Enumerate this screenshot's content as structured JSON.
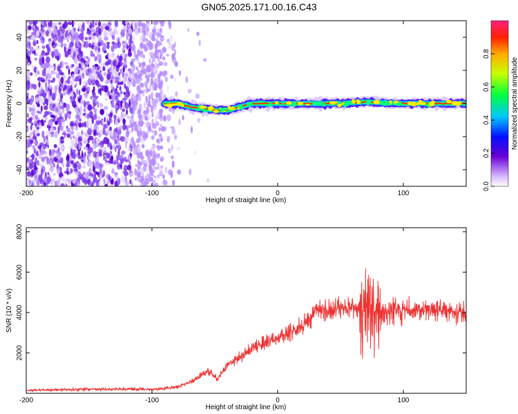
{
  "title": "GN05.2025.171.00.16.C43",
  "chart_data": [
    {
      "type": "heatmap",
      "xlabel": "Height of straight line (km)",
      "ylabel": "Frequency (Hz)",
      "xlim": [
        -200,
        150
      ],
      "ylim": [
        -50,
        50
      ],
      "xticks": [
        -200,
        -100,
        0,
        100
      ],
      "yticks": [
        -40,
        -20,
        0,
        20,
        40
      ],
      "colorbar": {
        "label": "Normalized spectral amplitude",
        "range": [
          0,
          1
        ],
        "ticks": [
          "0.0",
          "0.2",
          "0.4",
          "0.6",
          "0.8"
        ]
      },
      "ridge": [
        {
          "x": -90,
          "y": 0
        },
        {
          "x": -80,
          "y": 0
        },
        {
          "x": -70,
          "y": -2
        },
        {
          "x": -60,
          "y": -3
        },
        {
          "x": -50,
          "y": -4
        },
        {
          "x": -40,
          "y": -4
        },
        {
          "x": -30,
          "y": -2
        },
        {
          "x": -20,
          "y": 0
        },
        {
          "x": 0,
          "y": 0
        },
        {
          "x": 50,
          "y": 0
        },
        {
          "x": 70,
          "y": 1
        },
        {
          "x": 100,
          "y": 0
        },
        {
          "x": 150,
          "y": 0
        }
      ],
      "noise_region": [
        -200,
        -80
      ]
    },
    {
      "type": "line",
      "xlabel": "Height of straight line (km)",
      "ylabel": "SNR (10 * v/v)",
      "xlim": [
        -200,
        150
      ],
      "ylim": [
        0,
        8200
      ],
      "xticks": [
        -200,
        -100,
        0,
        100
      ],
      "yticks": [
        2000,
        4000,
        6000,
        8000
      ],
      "color": "#ee3333",
      "trend": [
        {
          "x": -200,
          "y": 150
        },
        {
          "x": -150,
          "y": 200
        },
        {
          "x": -100,
          "y": 200
        },
        {
          "x": -80,
          "y": 300
        },
        {
          "x": -65,
          "y": 700
        },
        {
          "x": -55,
          "y": 1100
        },
        {
          "x": -48,
          "y": 700
        },
        {
          "x": -40,
          "y": 1400
        },
        {
          "x": -30,
          "y": 1800
        },
        {
          "x": -20,
          "y": 2300
        },
        {
          "x": 0,
          "y": 2700
        },
        {
          "x": 20,
          "y": 3300
        },
        {
          "x": 30,
          "y": 4100
        },
        {
          "x": 50,
          "y": 4200
        },
        {
          "x": 60,
          "y": 4150
        },
        {
          "x": 70,
          "y": 4200
        },
        {
          "x": 80,
          "y": 4100
        },
        {
          "x": 100,
          "y": 4100
        },
        {
          "x": 120,
          "y": 4150
        },
        {
          "x": 150,
          "y": 3950
        }
      ]
    }
  ]
}
